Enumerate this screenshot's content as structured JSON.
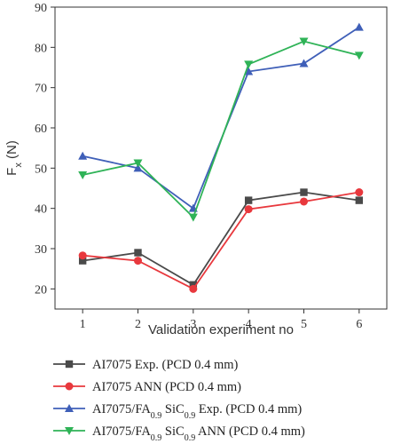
{
  "chart_data": {
    "type": "line",
    "xlabel": "Validation experiment no",
    "ylabel": {
      "main": "F",
      "sub": "x",
      "unit": " (N)"
    },
    "x": [
      1,
      2,
      3,
      4,
      5,
      6
    ],
    "xlim": [
      0.5,
      6.5
    ],
    "ylim": [
      15,
      90
    ],
    "yticks": [
      20,
      30,
      40,
      50,
      60,
      70,
      80,
      90
    ],
    "grid": false,
    "legend_position": "bottom",
    "series": [
      {
        "name_parts": [
          "AI7075 Exp. (PCD 0.4 mm)"
        ],
        "values": [
          27,
          29,
          21,
          42,
          44,
          42
        ],
        "color": "#4a4a4a",
        "marker": "square"
      },
      {
        "name_parts": [
          "AI7075 ANN (PCD 0.4 mm)"
        ],
        "values": [
          28.3,
          27,
          20,
          39.8,
          41.7,
          44
        ],
        "color": "#e8383d",
        "marker": "circle"
      },
      {
        "name_parts": [
          "AI7075/FA",
          "0.9",
          " SiC",
          "0.9",
          " Exp. (PCD 0.4 mm)"
        ],
        "values": [
          53,
          50,
          40,
          74,
          76,
          85
        ],
        "color": "#3f5fb8",
        "marker": "triangle-up"
      },
      {
        "name_parts": [
          "AI7075/FA",
          "0.9",
          " SiC",
          "0.9",
          " ANN (PCD 0.4 mm)"
        ],
        "values": [
          48.3,
          51.3,
          37.8,
          75.8,
          81.5,
          78
        ],
        "color": "#2fb357",
        "marker": "triangle-down"
      }
    ]
  }
}
